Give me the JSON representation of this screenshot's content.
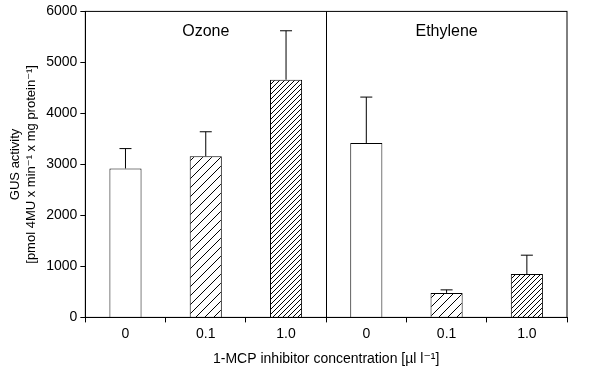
{
  "chart_data": {
    "type": "bar",
    "x_label": "1-MCP inhibitor concentration [µl l⁻¹]",
    "y_label": [
      "GUS activity",
      "[pmol 4MU x min⁻¹ x mg protein⁻¹]"
    ],
    "categories": [
      "0",
      "0.1",
      "1.0"
    ],
    "color": "#ffffff",
    "ylim": [
      0,
      6000
    ],
    "yticks": [
      0,
      1000,
      2000,
      3000,
      4000,
      5000,
      6000
    ],
    "grid": false,
    "panels": [
      {
        "title": "Ozone",
        "values": [
          2920,
          3160,
          4660
        ],
        "errors": [
          390,
          480,
          960
        ]
      },
      {
        "title": "Ethylene",
        "values": [
          3420,
          480,
          850
        ],
        "errors": [
          900,
          60,
          370
        ]
      }
    ]
  }
}
